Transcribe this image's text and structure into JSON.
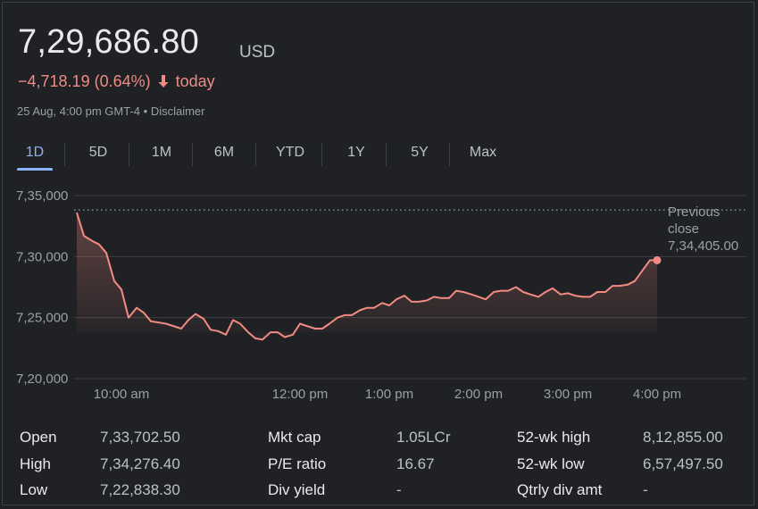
{
  "quote": {
    "price": "7,29,686.80",
    "currency": "USD",
    "change": "−4,718.19 (0.64%)",
    "change_period": "today",
    "timestamp": "25 Aug, 4:00 pm GMT-4",
    "separator": " • ",
    "disclaimer": "Disclaimer"
  },
  "colors": {
    "negative": "#f28b82",
    "accent": "#8ab4f8",
    "background": "#202124"
  },
  "tabs": [
    {
      "label": "1D",
      "active": true
    },
    {
      "label": "5D"
    },
    {
      "label": "1M"
    },
    {
      "label": "6M"
    },
    {
      "label": "YTD"
    },
    {
      "label": "1Y"
    },
    {
      "label": "5Y"
    },
    {
      "label": "Max"
    }
  ],
  "chart_data": {
    "type": "line",
    "y_ticks": [
      "7,35,000",
      "7,30,000",
      "7,25,000",
      "7,20,000"
    ],
    "y_tick_values": [
      735000,
      730000,
      725000,
      720000
    ],
    "ylim": [
      720000,
      735000
    ],
    "x_ticks": [
      "10:00 am",
      "12:00 pm",
      "1:00 pm",
      "2:00 pm",
      "3:00 pm",
      "4:00 pm"
    ],
    "x_tick_values": [
      10.0,
      12.0,
      13.0,
      14.0,
      15.0,
      16.0
    ],
    "xlim": [
      9.5,
      17.0
    ],
    "previous_close": {
      "label_line1": "Previous",
      "label_line2": "close",
      "value_text": "7,34,405.00",
      "value": 734405
    },
    "line_color": "#f28b82",
    "grid": true,
    "series": [
      {
        "x": [
          9.5,
          9.58,
          9.67,
          9.75,
          9.83,
          9.92,
          10.0,
          10.08,
          10.17,
          10.25,
          10.33,
          10.5,
          10.67,
          10.75,
          10.83,
          10.92,
          11.0,
          11.08,
          11.17,
          11.25,
          11.33,
          11.42,
          11.5,
          11.58,
          11.67,
          11.75,
          11.83,
          11.92,
          12.0,
          12.08,
          12.17,
          12.25,
          12.33,
          12.42,
          12.5,
          12.58,
          12.67,
          12.75,
          12.83,
          12.92,
          13.0,
          13.08,
          13.17,
          13.25,
          13.33,
          13.42,
          13.5,
          13.58,
          13.67,
          13.75,
          13.83,
          13.92,
          14.0,
          14.08,
          14.17,
          14.25,
          14.33,
          14.42,
          14.5,
          14.58,
          14.67,
          14.75,
          14.83,
          14.92,
          15.0,
          15.08,
          15.17,
          15.25,
          15.33,
          15.42,
          15.5,
          15.58,
          15.67,
          15.75,
          15.83,
          15.92,
          16.0
        ],
        "y": [
          733600,
          731700,
          731300,
          731000,
          730300,
          728000,
          727300,
          725000,
          725800,
          725400,
          724700,
          724500,
          724100,
          724800,
          725300,
          724900,
          724000,
          723900,
          723600,
          724800,
          724500,
          723800,
          723300,
          723200,
          723800,
          723800,
          723400,
          723600,
          724500,
          724300,
          724100,
          724100,
          724500,
          725000,
          725200,
          725200,
          725600,
          725800,
          725800,
          726200,
          726000,
          726500,
          726800,
          726300,
          726300,
          726400,
          726700,
          726600,
          726600,
          727200,
          727100,
          726900,
          726700,
          726500,
          727100,
          727200,
          727200,
          727500,
          727100,
          726900,
          726700,
          727100,
          727400,
          726900,
          727000,
          726800,
          726700,
          726700,
          727100,
          727100,
          727600,
          727600,
          727700,
          728000,
          728800,
          729700,
          729700
        ]
      }
    ]
  },
  "stats": {
    "col1": [
      {
        "key": "Open",
        "value": "7,33,702.50"
      },
      {
        "key": "High",
        "value": "7,34,276.40"
      },
      {
        "key": "Low",
        "value": "7,22,838.30"
      }
    ],
    "col2": [
      {
        "key": "Mkt cap",
        "value": "1.05LCr"
      },
      {
        "key": "P/E ratio",
        "value": "16.67"
      },
      {
        "key": "Div yield",
        "value": "-"
      }
    ],
    "col3": [
      {
        "key": "52-wk high",
        "value": "8,12,855.00"
      },
      {
        "key": "52-wk low",
        "value": "6,57,497.50"
      },
      {
        "key": "Qtrly div amt",
        "value": "-"
      }
    ]
  }
}
